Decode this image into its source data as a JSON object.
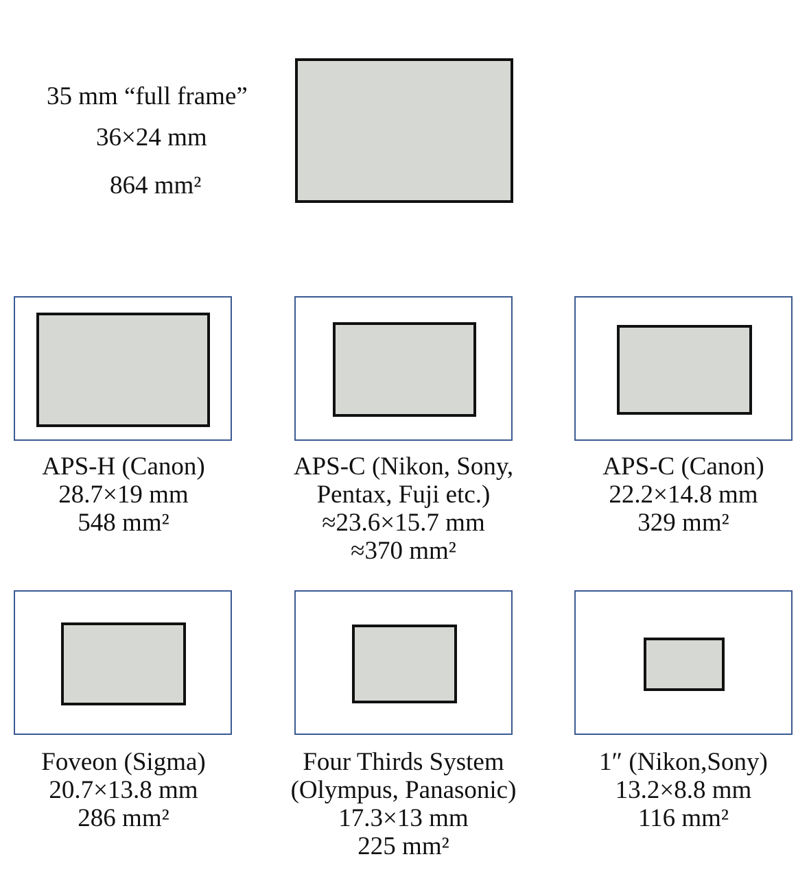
{
  "full_frame": {
    "name": "35 mm “full frame”",
    "dimensions": "36×24 mm",
    "area": "864 mm²"
  },
  "formats": [
    {
      "lines": [
        "APS-H (Canon)",
        "28.7×19 mm",
        "548 mm²"
      ]
    },
    {
      "lines": [
        "APS-C (Nikon, Sony,",
        "Pentax, Fuji etc.)",
        "≈23.6×15.7 mm",
        "≈370 mm²"
      ]
    },
    {
      "lines": [
        "APS-C (Canon)",
        "22.2×14.8 mm",
        "329 mm²"
      ]
    },
    {
      "lines": [
        "Foveon (Sigma)",
        "20.7×13.8 mm",
        "286 mm²"
      ]
    },
    {
      "lines": [
        "Four Thirds System",
        "(Olympus, Panasonic)",
        "17.3×13 mm",
        "225 mm²"
      ]
    },
    {
      "lines": [
        "1″ (Nikon,Sony)",
        "13.2×8.8 mm",
        "116 mm²"
      ]
    }
  ],
  "colors": {
    "sensor_fill": "#d5d8d3",
    "sensor_border": "#111111",
    "frame_border": "#3b5a93"
  }
}
